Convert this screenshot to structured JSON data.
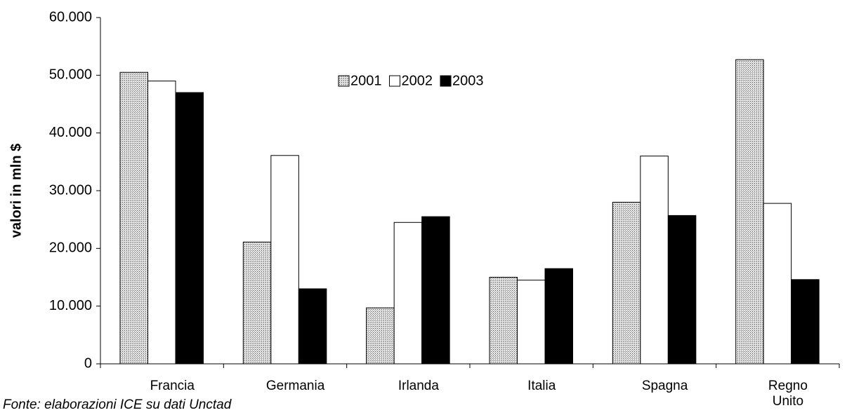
{
  "chart_data": {
    "type": "bar",
    "y_label": "valori in mln $",
    "note": "Fonte:  elaborazioni ICE su dati Unctad",
    "categories": [
      "Francia",
      "Germania",
      "Irlanda",
      "Italia",
      "Spagna",
      "Regno Unito"
    ],
    "series": [
      {
        "name": "2001",
        "color": "#c4c4c4",
        "values": [
          50500,
          21100,
          9700,
          15000,
          28000,
          52700
        ]
      },
      {
        "name": "2002",
        "color": "#ffffff",
        "values": [
          49000,
          36100,
          24500,
          14500,
          36000,
          27800
        ]
      },
      {
        "name": "2003",
        "color": "#000000",
        "values": [
          47000,
          13000,
          25500,
          16500,
          25700,
          14600
        ]
      }
    ],
    "ylim": [
      0,
      60000
    ],
    "yticks": [
      {
        "value": 0,
        "label": "0"
      },
      {
        "value": 10000,
        "label": "10.000"
      },
      {
        "value": 20000,
        "label": "20.000"
      },
      {
        "value": 30000,
        "label": "30.000"
      },
      {
        "value": 40000,
        "label": "40.000"
      },
      {
        "value": 50000,
        "label": "50.000"
      },
      {
        "value": 60000,
        "label": "60.000"
      }
    ],
    "grid": false
  }
}
